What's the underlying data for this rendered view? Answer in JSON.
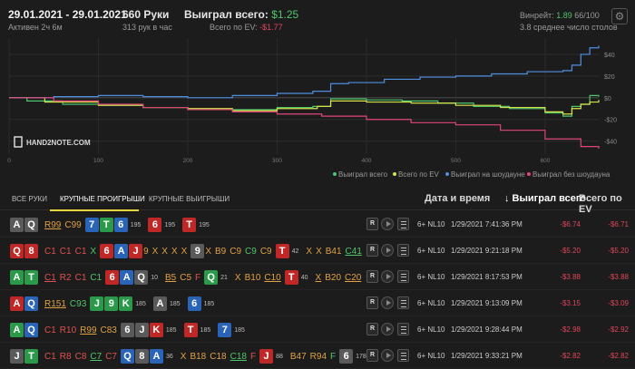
{
  "header": {
    "date_range": "29.01.2021 - 29.01.2021",
    "active": "Активен 2ч 6м",
    "hands": "660 Руки",
    "hands_per_hour": "313 рук в час",
    "won_label": "Выиграл всего:",
    "won_value": "$1.25",
    "ev_label": "Всего по EV:",
    "ev_value": "-$1.77",
    "winrate_label": "Винрейт:",
    "winrate_value": "1.89",
    "winrate_rest": "66/100",
    "avg_tables": "3.8 среднее число столов",
    "gear_icon": "⚙"
  },
  "chart_data": {
    "type": "line",
    "watermark": "HAND2NOTE.COM",
    "xlim": [
      0,
      660
    ],
    "ylim": [
      -52,
      55
    ],
    "x_ticks": [
      0,
      100,
      200,
      300,
      400,
      500,
      600
    ],
    "y_ticks": [
      40,
      20,
      0,
      -20,
      -40
    ],
    "y_tick_labels": [
      "$40",
      "$20",
      "$0",
      "-$20",
      "-$40"
    ],
    "grid": true,
    "legend_position": "bottom-right",
    "series": [
      {
        "name": "Выиграл всего",
        "color": "#4ec66c",
        "x": [
          0,
          20,
          60,
          100,
          150,
          200,
          250,
          300,
          340,
          360,
          400,
          440,
          480,
          520,
          560,
          600,
          620,
          630,
          640,
          650,
          660
        ],
        "y": [
          0,
          -3,
          -6,
          -7,
          -9,
          -11,
          -11,
          -9,
          -8,
          -1,
          -2,
          -3,
          -5,
          -8,
          -10,
          -14,
          -17,
          -8,
          -6,
          2,
          1
        ]
      },
      {
        "name": "Всего по EV",
        "color": "#d8e34a",
        "x": [
          0,
          40,
          100,
          150,
          200,
          250,
          300,
          345,
          360,
          400,
          450,
          500,
          550,
          600,
          620,
          630,
          640,
          650,
          660
        ],
        "y": [
          0,
          -4,
          -7,
          -9,
          -10,
          -12,
          -10,
          -8,
          -3,
          -4,
          -5,
          -7,
          -9,
          -13,
          -15,
          -10,
          -6,
          -4,
          -2
        ]
      },
      {
        "name": "Выиграл на шоудауне",
        "color": "#4f8fe0",
        "x": [
          0,
          50,
          100,
          150,
          200,
          250,
          300,
          340,
          360,
          380,
          420,
          460,
          500,
          540,
          580,
          620,
          630,
          640,
          650,
          660
        ],
        "y": [
          0,
          1,
          2,
          1,
          0,
          2,
          4,
          6,
          13,
          14,
          17,
          19,
          20,
          22,
          24,
          25,
          30,
          40,
          46,
          48
        ]
      },
      {
        "name": "Выиграл без шоудауна",
        "color": "#e0457a",
        "x": [
          0,
          50,
          100,
          150,
          200,
          250,
          300,
          350,
          400,
          450,
          500,
          550,
          600,
          640,
          660
        ],
        "y": [
          0,
          -3,
          -6,
          -9,
          -11,
          -13,
          -15,
          -17,
          -20,
          -23,
          -25,
          -30,
          -38,
          -45,
          -47
        ]
      }
    ]
  },
  "tabs": [
    "ВСЕ РУКИ",
    "КРУПНЫЕ ПРОИГРЫШИ",
    "КРУПНЫЕ ВЫИГРЫШИ"
  ],
  "columns": {
    "date": "Дата и время",
    "won": "↓ Выиграл всего",
    "ev": "Всего по EV"
  },
  "rows": [
    {
      "hole": [
        {
          "r": "A",
          "c": "#5a5a5a"
        },
        {
          "r": "Q",
          "c": "#5a5a5a"
        }
      ],
      "segs": [
        {
          "type": "act",
          "t": "R99",
          "col": "#e0a044",
          "u": true
        },
        {
          "type": "act",
          "t": "C99",
          "col": "#e0a044"
        },
        {
          "type": "cards",
          "cards": [
            {
              "r": "7",
              "c": "#2a64b8"
            },
            {
              "r": "T",
              "c": "#2a9a4a"
            },
            {
              "r": "6",
              "c": "#2a64b8"
            }
          ]
        },
        {
          "type": "pot",
          "t": "195"
        },
        {
          "type": "cards",
          "cards": [
            {
              "r": "6",
              "c": "#c02828"
            }
          ]
        },
        {
          "type": "pot",
          "t": "195"
        },
        {
          "type": "cards",
          "cards": [
            {
              "r": "T",
              "c": "#c02828"
            }
          ]
        },
        {
          "type": "pot",
          "t": "195"
        }
      ],
      "limit": "6+ NL10",
      "date": "1/29/2021 7:41:36 PM",
      "won": "-$6.74",
      "ev": "-$6.71"
    },
    {
      "hole": [
        {
          "r": "Q",
          "c": "#c02828"
        },
        {
          "r": "8",
          "c": "#c02828"
        }
      ],
      "segs": [
        {
          "type": "act",
          "t": "C1",
          "col": "#e05050"
        },
        {
          "type": "act",
          "t": "C1",
          "col": "#e05050"
        },
        {
          "type": "act",
          "t": "C1",
          "col": "#e05050"
        },
        {
          "type": "act",
          "t": "X",
          "col": "#4ec66c"
        },
        {
          "type": "cards",
          "cards": [
            {
              "r": "6",
              "c": "#c02828"
            },
            {
              "r": "A",
              "c": "#2a64b8"
            },
            {
              "r": "J",
              "c": "#c02828"
            }
          ]
        },
        {
          "type": "act",
          "t": "9",
          "col": "#e0a044"
        },
        {
          "type": "act",
          "t": "X",
          "col": "#e0a044"
        },
        {
          "type": "act",
          "t": "X",
          "col": "#e0a044"
        },
        {
          "type": "act",
          "t": "X",
          "col": "#e0a044"
        },
        {
          "type": "act",
          "t": "X",
          "col": "#e0a044"
        },
        {
          "type": "cards",
          "cards": [
            {
              "r": "9",
              "c": "#5a5a5a"
            }
          ]
        },
        {
          "type": "act",
          "t": "X",
          "col": "#e0a044"
        },
        {
          "type": "act",
          "t": "B9",
          "col": "#e0a044"
        },
        {
          "type": "act",
          "t": "C9",
          "col": "#e0a044"
        },
        {
          "type": "act",
          "t": "C9",
          "col": "#4ec66c"
        },
        {
          "type": "act",
          "t": "C9",
          "col": "#e0a044"
        },
        {
          "type": "cards",
          "cards": [
            {
              "r": "T",
              "c": "#c02828"
            }
          ]
        },
        {
          "type": "pot",
          "t": "42"
        },
        {
          "type": "act",
          "t": "X",
          "col": "#e0a044"
        },
        {
          "type": "act",
          "t": "X",
          "col": "#e0a044"
        },
        {
          "type": "act",
          "t": "B41",
          "col": "#e0a044"
        },
        {
          "type": "act",
          "t": "C41",
          "col": "#4ec66c",
          "u": true
        }
      ],
      "limit": "6+ NL10",
      "date": "1/29/2021 9:21:18 PM",
      "won": "-$5.20",
      "ev": "-$5.20"
    },
    {
      "hole": [
        {
          "r": "A",
          "c": "#2a9a4a"
        },
        {
          "r": "T",
          "c": "#2a9a4a"
        }
      ],
      "segs": [
        {
          "type": "act",
          "t": "C1",
          "col": "#e05050",
          "u": true
        },
        {
          "type": "act",
          "t": "R2",
          "col": "#e05050"
        },
        {
          "type": "act",
          "t": "C1",
          "col": "#e05050"
        },
        {
          "type": "act",
          "t": "C1",
          "col": "#4ec66c"
        },
        {
          "type": "cards",
          "cards": [
            {
              "r": "6",
              "c": "#c02828"
            },
            {
              "r": "A",
              "c": "#2a64b8"
            },
            {
              "r": "Q",
              "c": "#5a5a5a"
            }
          ]
        },
        {
          "type": "pot",
          "t": "10"
        },
        {
          "type": "act",
          "t": "B5",
          "col": "#e0a044",
          "u": true
        },
        {
          "type": "act",
          "t": "C5",
          "col": "#e0a044"
        },
        {
          "type": "act",
          "t": "F",
          "col": "#e05050"
        },
        {
          "type": "cards",
          "cards": [
            {
              "r": "Q",
              "c": "#2a9a4a"
            }
          ]
        },
        {
          "type": "pot",
          "t": "21"
        },
        {
          "type": "act",
          "t": "X",
          "col": "#e0a044"
        },
        {
          "type": "act",
          "t": "B10",
          "col": "#e0a044"
        },
        {
          "type": "act",
          "t": "C10",
          "col": "#e0a044",
          "u": true
        },
        {
          "type": "cards",
          "cards": [
            {
              "r": "T",
              "c": "#c02828"
            }
          ]
        },
        {
          "type": "pot",
          "t": "40"
        },
        {
          "type": "act",
          "t": "X",
          "col": "#e0a044",
          "u": true
        },
        {
          "type": "act",
          "t": "B20",
          "col": "#e0a044"
        },
        {
          "type": "act",
          "t": "C20",
          "col": "#e0a044",
          "u": true
        }
      ],
      "limit": "6+ NL10",
      "date": "1/29/2021 8:17:53 PM",
      "won": "-$3.88",
      "ev": "-$3.88"
    },
    {
      "hole": [
        {
          "r": "A",
          "c": "#c02828"
        },
        {
          "r": "Q",
          "c": "#2a64b8"
        }
      ],
      "segs": [
        {
          "type": "act",
          "t": "R151",
          "col": "#e0a044",
          "u": true
        },
        {
          "type": "act",
          "t": "C93",
          "col": "#4ec66c"
        },
        {
          "type": "cards",
          "cards": [
            {
              "r": "J",
              "c": "#2a9a4a"
            },
            {
              "r": "9",
              "c": "#2a9a4a"
            },
            {
              "r": "K",
              "c": "#2a9a4a"
            }
          ]
        },
        {
          "type": "pot",
          "t": "185"
        },
        {
          "type": "cards",
          "cards": [
            {
              "r": "A",
              "c": "#5a5a5a"
            }
          ]
        },
        {
          "type": "pot",
          "t": "185"
        },
        {
          "type": "cards",
          "cards": [
            {
              "r": "6",
              "c": "#2a64b8"
            }
          ]
        },
        {
          "type": "pot",
          "t": "185"
        }
      ],
      "limit": "6+ NL10",
      "date": "1/29/2021 9:13:09 PM",
      "won": "-$3.15",
      "ev": "-$3.09"
    },
    {
      "hole": [
        {
          "r": "A",
          "c": "#2a9a4a"
        },
        {
          "r": "Q",
          "c": "#2a64b8"
        }
      ],
      "segs": [
        {
          "type": "act",
          "t": "C1",
          "col": "#e05050"
        },
        {
          "type": "act",
          "t": "R10",
          "col": "#e05050"
        },
        {
          "type": "act",
          "t": "R99",
          "col": "#e0a044",
          "u": true
        },
        {
          "type": "act",
          "t": "C83",
          "col": "#e0a044"
        },
        {
          "type": "cards",
          "cards": [
            {
              "r": "6",
              "c": "#5a5a5a"
            },
            {
              "r": "J",
              "c": "#5a5a5a"
            },
            {
              "r": "K",
              "c": "#c02828"
            }
          ]
        },
        {
          "type": "pot",
          "t": "185"
        },
        {
          "type": "cards",
          "cards": [
            {
              "r": "T",
              "c": "#c02828"
            }
          ]
        },
        {
          "type": "pot",
          "t": "185"
        },
        {
          "type": "cards",
          "cards": [
            {
              "r": "7",
              "c": "#2a64b8"
            }
          ]
        },
        {
          "type": "pot",
          "t": "185"
        }
      ],
      "limit": "6+ NL10",
      "date": "1/29/2021 9:28:44 PM",
      "won": "-$2.98",
      "ev": "-$2.92"
    },
    {
      "hole": [
        {
          "r": "J",
          "c": "#5a5a5a"
        },
        {
          "r": "T",
          "c": "#2a9a4a"
        }
      ],
      "segs": [
        {
          "type": "act",
          "t": "C1",
          "col": "#e05050"
        },
        {
          "type": "act",
          "t": "R8",
          "col": "#e05050"
        },
        {
          "type": "act",
          "t": "C8",
          "col": "#e05050"
        },
        {
          "type": "act",
          "t": "C7",
          "col": "#4ec66c",
          "u": true
        },
        {
          "type": "act",
          "t": "C7",
          "col": "#e05050"
        },
        {
          "type": "cards",
          "cards": [
            {
              "r": "Q",
              "c": "#2a64b8"
            },
            {
              "r": "8",
              "c": "#5a5a5a"
            },
            {
              "r": "A",
              "c": "#2a64b8"
            }
          ]
        },
        {
          "type": "pot",
          "t": "36"
        },
        {
          "type": "act",
          "t": "X",
          "col": "#e0a044"
        },
        {
          "type": "act",
          "t": "B18",
          "col": "#e0a044"
        },
        {
          "type": "act",
          "t": "C18",
          "col": "#e0a044"
        },
        {
          "type": "act",
          "t": "C18",
          "col": "#4ec66c",
          "u": true
        },
        {
          "type": "act",
          "t": "F",
          "col": "#e05050"
        },
        {
          "type": "cards",
          "cards": [
            {
              "r": "J",
              "c": "#c02828"
            }
          ]
        },
        {
          "type": "pot",
          "t": "88"
        },
        {
          "type": "act",
          "t": "B47",
          "col": "#e0a044"
        },
        {
          "type": "act",
          "t": "R94",
          "col": "#e0a044"
        },
        {
          "type": "act",
          "t": "F",
          "col": "#4ec66c"
        },
        {
          "type": "cards",
          "cards": [
            {
              "r": "6",
              "c": "#5a5a5a"
            }
          ]
        },
        {
          "type": "pot",
          "t": "178"
        }
      ],
      "limit": "6+ NL10",
      "date": "1/29/2021 9:33:21 PM",
      "won": "-$2.82",
      "ev": "-$2.82"
    }
  ],
  "row_controls": {
    "replay_label": "R"
  }
}
